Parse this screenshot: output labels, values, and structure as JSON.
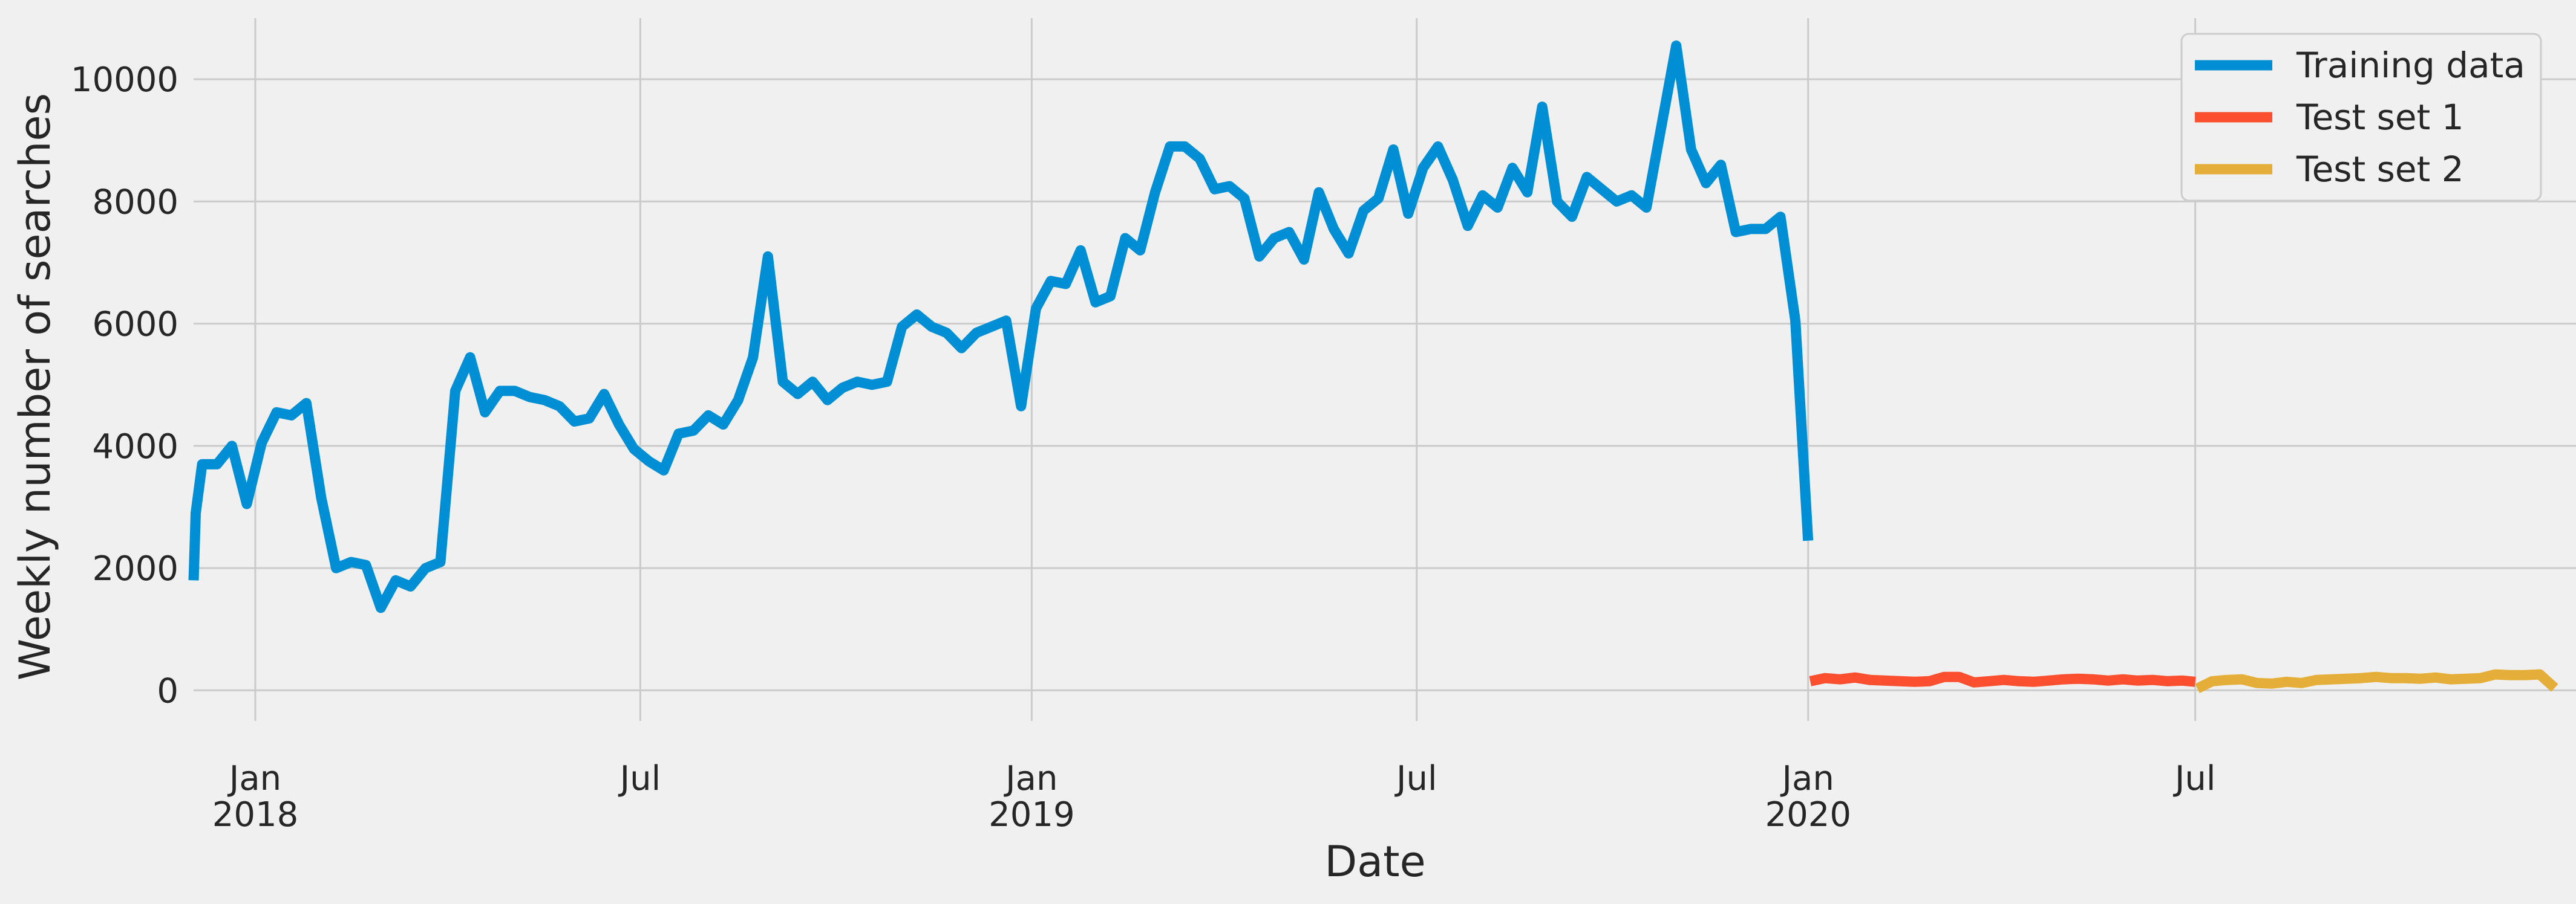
{
  "chart_data": {
    "type": "line",
    "title": "",
    "xlabel": "Date",
    "ylabel": "Weekly number of searches",
    "xlim": [
      "2017-12-03",
      "2020-12-27"
    ],
    "ylim": [
      -500,
      11000
    ],
    "grid": true,
    "legend_position": "top-right",
    "x_ticks": [
      {
        "date": "2018-01-01",
        "label": "Jan",
        "sublabel": "2018"
      },
      {
        "date": "2018-07-01",
        "label": "Jul",
        "sublabel": ""
      },
      {
        "date": "2019-01-01",
        "label": "Jan",
        "sublabel": "2019"
      },
      {
        "date": "2019-07-01",
        "label": "Jul",
        "sublabel": ""
      },
      {
        "date": "2020-01-01",
        "label": "Jan",
        "sublabel": "2020"
      },
      {
        "date": "2020-07-01",
        "label": "Jul",
        "sublabel": ""
      }
    ],
    "y_ticks": [
      0,
      2000,
      4000,
      6000,
      8000,
      10000
    ],
    "series": [
      {
        "name": "Training data",
        "color": "#008fd5",
        "points": [
          [
            "2017-12-03",
            1800
          ],
          [
            "2017-12-04",
            2900
          ],
          [
            "2017-12-07",
            3700
          ],
          [
            "2017-12-10",
            3700
          ],
          [
            "2017-12-14",
            3700
          ],
          [
            "2017-12-21",
            4000
          ],
          [
            "2017-12-28",
            3050
          ],
          [
            "2018-01-04",
            4050
          ],
          [
            "2018-01-11",
            4550
          ],
          [
            "2018-01-18",
            4500
          ],
          [
            "2018-01-25",
            4700
          ],
          [
            "2018-02-01",
            3150
          ],
          [
            "2018-02-08",
            2000
          ],
          [
            "2018-02-15",
            2100
          ],
          [
            "2018-02-22",
            2050
          ],
          [
            "2018-03-01",
            1350
          ],
          [
            "2018-03-08",
            1800
          ],
          [
            "2018-03-15",
            1700
          ],
          [
            "2018-03-22",
            2000
          ],
          [
            "2018-03-29",
            2100
          ],
          [
            "2018-04-05",
            4900
          ],
          [
            "2018-04-12",
            5450
          ],
          [
            "2018-04-19",
            4550
          ],
          [
            "2018-04-26",
            4900
          ],
          [
            "2018-05-03",
            4900
          ],
          [
            "2018-05-10",
            4800
          ],
          [
            "2018-05-17",
            4750
          ],
          [
            "2018-05-24",
            4650
          ],
          [
            "2018-05-31",
            4400
          ],
          [
            "2018-06-07",
            4450
          ],
          [
            "2018-06-14",
            4850
          ],
          [
            "2018-06-21",
            4350
          ],
          [
            "2018-06-28",
            3950
          ],
          [
            "2018-07-05",
            3750
          ],
          [
            "2018-07-12",
            3600
          ],
          [
            "2018-07-19",
            4200
          ],
          [
            "2018-07-26",
            4250
          ],
          [
            "2018-08-02",
            4500
          ],
          [
            "2018-08-09",
            4350
          ],
          [
            "2018-08-16",
            4750
          ],
          [
            "2018-08-23",
            5450
          ],
          [
            "2018-08-30",
            7100
          ],
          [
            "2018-09-06",
            5050
          ],
          [
            "2018-09-13",
            4850
          ],
          [
            "2018-09-20",
            5050
          ],
          [
            "2018-09-27",
            4750
          ],
          [
            "2018-10-04",
            4950
          ],
          [
            "2018-10-11",
            5050
          ],
          [
            "2018-10-18",
            5000
          ],
          [
            "2018-10-25",
            5050
          ],
          [
            "2018-11-01",
            5950
          ],
          [
            "2018-11-08",
            6150
          ],
          [
            "2018-11-15",
            5950
          ],
          [
            "2018-11-22",
            5850
          ],
          [
            "2018-11-29",
            5600
          ],
          [
            "2018-12-06",
            5850
          ],
          [
            "2018-12-13",
            5950
          ],
          [
            "2018-12-20",
            6050
          ],
          [
            "2018-12-27",
            4650
          ],
          [
            "2019-01-03",
            6250
          ],
          [
            "2019-01-10",
            6700
          ],
          [
            "2019-01-17",
            6650
          ],
          [
            "2019-01-24",
            7200
          ],
          [
            "2019-01-31",
            6350
          ],
          [
            "2019-02-07",
            6450
          ],
          [
            "2019-02-14",
            7400
          ],
          [
            "2019-02-21",
            7200
          ],
          [
            "2019-02-28",
            8150
          ],
          [
            "2019-03-07",
            8900
          ],
          [
            "2019-03-14",
            8900
          ],
          [
            "2019-03-21",
            8700
          ],
          [
            "2019-03-28",
            8200
          ],
          [
            "2019-04-04",
            8250
          ],
          [
            "2019-04-11",
            8050
          ],
          [
            "2019-04-18",
            7100
          ],
          [
            "2019-04-25",
            7400
          ],
          [
            "2019-05-02",
            7500
          ],
          [
            "2019-05-09",
            7050
          ],
          [
            "2019-05-16",
            8150
          ],
          [
            "2019-05-23",
            7550
          ],
          [
            "2019-05-30",
            7150
          ],
          [
            "2019-06-06",
            7850
          ],
          [
            "2019-06-13",
            8050
          ],
          [
            "2019-06-20",
            8850
          ],
          [
            "2019-06-27",
            7800
          ],
          [
            "2019-07-04",
            8550
          ],
          [
            "2019-07-11",
            8900
          ],
          [
            "2019-07-18",
            8350
          ],
          [
            "2019-07-25",
            7600
          ],
          [
            "2019-08-01",
            8100
          ],
          [
            "2019-08-08",
            7900
          ],
          [
            "2019-08-15",
            8550
          ],
          [
            "2019-08-22",
            8150
          ],
          [
            "2019-08-29",
            9550
          ],
          [
            "2019-09-05",
            8000
          ],
          [
            "2019-09-12",
            7750
          ],
          [
            "2019-09-19",
            8400
          ],
          [
            "2019-09-26",
            8200
          ],
          [
            "2019-10-03",
            8000
          ],
          [
            "2019-10-10",
            8100
          ],
          [
            "2019-10-17",
            7900
          ],
          [
            "2019-10-31",
            10550
          ],
          [
            "2019-11-07",
            8850
          ],
          [
            "2019-11-14",
            8300
          ],
          [
            "2019-11-21",
            8600
          ],
          [
            "2019-11-28",
            7500
          ],
          [
            "2019-12-05",
            7550
          ],
          [
            "2019-12-12",
            7550
          ],
          [
            "2019-12-19",
            7750
          ],
          [
            "2019-12-26",
            6050
          ],
          [
            "2020-01-01",
            2450
          ]
        ]
      },
      {
        "name": "Test set 1",
        "color": "#fc4f30",
        "points": [
          [
            "2020-01-02",
            150
          ],
          [
            "2020-01-09",
            200
          ],
          [
            "2020-01-16",
            180
          ],
          [
            "2020-01-23",
            210
          ],
          [
            "2020-01-30",
            170
          ],
          [
            "2020-02-06",
            160
          ],
          [
            "2020-02-13",
            150
          ],
          [
            "2020-02-20",
            140
          ],
          [
            "2020-02-27",
            150
          ],
          [
            "2020-03-05",
            220
          ],
          [
            "2020-03-12",
            220
          ],
          [
            "2020-03-19",
            130
          ],
          [
            "2020-03-26",
            150
          ],
          [
            "2020-04-02",
            170
          ],
          [
            "2020-04-09",
            150
          ],
          [
            "2020-04-16",
            140
          ],
          [
            "2020-04-23",
            160
          ],
          [
            "2020-04-30",
            180
          ],
          [
            "2020-05-07",
            190
          ],
          [
            "2020-05-14",
            180
          ],
          [
            "2020-05-21",
            160
          ],
          [
            "2020-05-28",
            180
          ],
          [
            "2020-06-04",
            160
          ],
          [
            "2020-06-11",
            170
          ],
          [
            "2020-06-18",
            150
          ],
          [
            "2020-06-25",
            160
          ],
          [
            "2020-07-01",
            140
          ]
        ]
      },
      {
        "name": "Test set 2",
        "color": "#e5ae38",
        "points": [
          [
            "2020-07-02",
            30
          ],
          [
            "2020-07-09",
            150
          ],
          [
            "2020-07-16",
            170
          ],
          [
            "2020-07-23",
            180
          ],
          [
            "2020-07-30",
            120
          ],
          [
            "2020-08-06",
            110
          ],
          [
            "2020-08-13",
            140
          ],
          [
            "2020-08-20",
            120
          ],
          [
            "2020-08-27",
            170
          ],
          [
            "2020-09-03",
            180
          ],
          [
            "2020-09-10",
            190
          ],
          [
            "2020-09-17",
            200
          ],
          [
            "2020-09-24",
            220
          ],
          [
            "2020-10-01",
            200
          ],
          [
            "2020-10-08",
            200
          ],
          [
            "2020-10-15",
            190
          ],
          [
            "2020-10-22",
            210
          ],
          [
            "2020-10-29",
            180
          ],
          [
            "2020-11-05",
            190
          ],
          [
            "2020-11-12",
            200
          ],
          [
            "2020-11-19",
            260
          ],
          [
            "2020-11-26",
            250
          ],
          [
            "2020-12-03",
            250
          ],
          [
            "2020-12-10",
            260
          ],
          [
            "2020-12-17",
            40
          ]
        ]
      }
    ]
  }
}
